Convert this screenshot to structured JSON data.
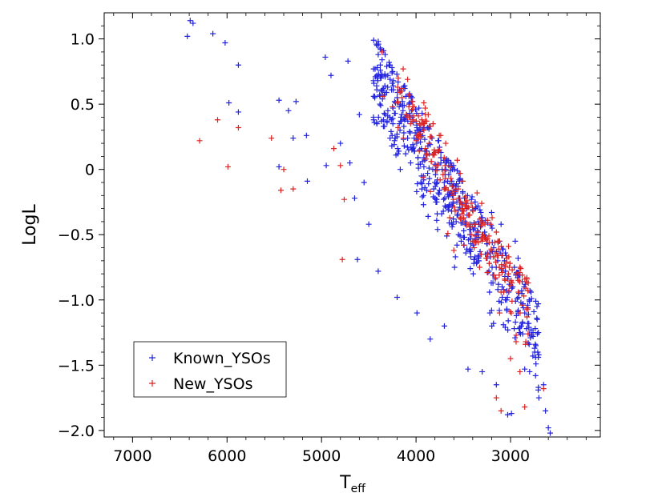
{
  "chart_data": {
    "type": "scatter",
    "title": "",
    "xlabel_main": "T",
    "xlabel_sub": "eff",
    "ylabel": "LogL",
    "xlim": [
      7300,
      2050
    ],
    "ylim": [
      -2.05,
      1.2
    ],
    "x_ticks": [
      7000,
      6000,
      5000,
      4000,
      3000
    ],
    "x_tick_labels": [
      "7000",
      "6000",
      "5000",
      "4000",
      "3000"
    ],
    "y_ticks": [
      1.0,
      0.5,
      0,
      -0.5,
      -1.0,
      -1.5,
      -2.0
    ],
    "y_tick_labels": [
      "1.0",
      "0.5",
      "0",
      "−0.5",
      "−1.0",
      "−1.5",
      "−2.0"
    ],
    "legend_position": "lower-left",
    "colors": {
      "known": "#2222dd",
      "new": "#dd2222"
    },
    "series": [
      {
        "name": "Known_YSOs",
        "marker": "+",
        "color": "#2222dd",
        "points": [
          [
            6420,
            1.02
          ],
          [
            6390,
            1.14
          ],
          [
            6360,
            1.12
          ],
          [
            6150,
            1.04
          ],
          [
            6020,
            0.97
          ],
          [
            5880,
            0.8
          ],
          [
            5980,
            0.51
          ],
          [
            5880,
            0.44
          ],
          [
            5450,
            0.53
          ],
          [
            5350,
            0.45
          ],
          [
            5270,
            0.52
          ],
          [
            5160,
            0.26
          ],
          [
            5450,
            0.02
          ],
          [
            5300,
            0.24
          ],
          [
            5150,
            -0.09
          ],
          [
            4960,
            0.86
          ],
          [
            4900,
            0.72
          ],
          [
            4720,
            0.83
          ],
          [
            4400,
            0.88
          ],
          [
            4800,
            0.2
          ],
          [
            4950,
            0.03
          ],
          [
            4600,
            0.42
          ],
          [
            4450,
            0.4
          ],
          [
            4330,
            0.64
          ],
          [
            4200,
            0.55
          ],
          [
            4650,
            -0.22
          ],
          [
            4500,
            -0.42
          ],
          [
            4620,
            -0.69
          ],
          [
            4200,
            -0.98
          ],
          [
            4400,
            -0.78
          ],
          [
            4700,
            0.05
          ],
          [
            4550,
            -0.1
          ],
          [
            4100,
            0.42
          ],
          [
            3990,
            -1.1
          ],
          [
            3850,
            -1.3
          ],
          [
            3700,
            -1.2
          ],
          [
            3450,
            -1.53
          ],
          [
            3300,
            -1.55
          ],
          [
            3150,
            -1.65
          ],
          [
            3030,
            -1.88
          ],
          [
            2990,
            -1.87
          ],
          [
            2700,
            -1.75
          ],
          [
            2650,
            -1.65
          ],
          [
            2630,
            -1.85
          ],
          [
            2600,
            -1.98
          ],
          [
            2580,
            -2.02
          ],
          [
            2890,
            -1.02
          ],
          [
            2920,
            -0.68
          ],
          [
            2950,
            -0.55
          ],
          [
            3100,
            -0.42
          ],
          [
            3200,
            -0.33
          ]
        ],
        "cloud": {
          "count": 560,
          "seed": 11,
          "t_min": 2700,
          "t_max": 4450,
          "center_slope": 0.00118,
          "center_at_3000": -0.95,
          "spread": 0.28,
          "upper_offset": 0.28
        }
      },
      {
        "name": "New_YSOs",
        "marker": "+",
        "color": "#dd2222",
        "points": [
          [
            6290,
            0.22
          ],
          [
            6100,
            0.38
          ],
          [
            5990,
            0.02
          ],
          [
            5880,
            0.32
          ],
          [
            5530,
            0.24
          ],
          [
            5430,
            -0.16
          ],
          [
            5400,
            0.0
          ],
          [
            5300,
            -0.15
          ],
          [
            4870,
            0.16
          ],
          [
            4800,
            0.03
          ],
          [
            4760,
            -0.23
          ],
          [
            4780,
            -0.69
          ],
          [
            4360,
            0.9
          ],
          [
            4350,
            0.56
          ],
          [
            4150,
            0.62
          ],
          [
            4250,
            0.48
          ],
          [
            3900,
            0.42
          ],
          [
            3820,
            0.35
          ],
          [
            3400,
            -0.55
          ],
          [
            3350,
            -0.48
          ],
          [
            3000,
            -1.45
          ],
          [
            2900,
            -1.55
          ],
          [
            2850,
            -1.82
          ],
          [
            2650,
            -1.68
          ],
          [
            3100,
            -1.85
          ],
          [
            3150,
            -1.75
          ],
          [
            3600,
            -0.62
          ],
          [
            3500,
            -0.38
          ]
        ],
        "cloud": {
          "count": 230,
          "seed": 7,
          "t_min": 2800,
          "t_max": 4200,
          "center_slope": 0.00122,
          "center_at_3000": -0.85,
          "spread": 0.22,
          "upper_offset": 0.24
        }
      }
    ]
  }
}
